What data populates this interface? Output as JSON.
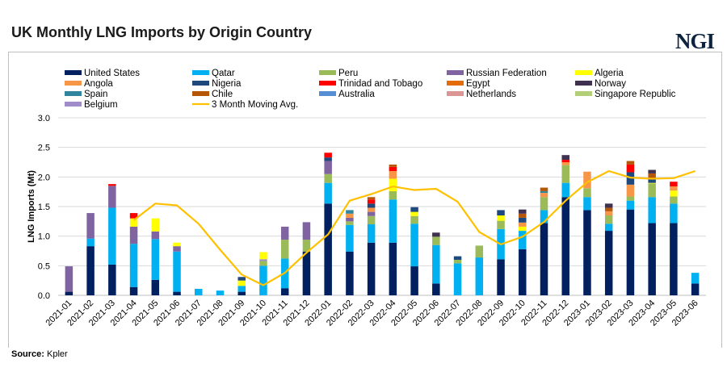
{
  "header": {
    "title": "UK Monthly LNG Imports by Origin Country",
    "logo": "NGI"
  },
  "footer": {
    "source_label": "Source:",
    "source_value": "Kpler"
  },
  "chart_data": {
    "type": "bar",
    "stacked": true,
    "title": "UK Monthly LNG Imports by Origin Country",
    "ylabel": "LNG Imports (Mt)",
    "xlabel": "",
    "ylim": [
      0,
      3.0
    ],
    "yticks": [
      "0.0",
      "0.5",
      "1.0",
      "1.5",
      "2.0",
      "2.5",
      "3.0"
    ],
    "grid": true,
    "legend_position": "top",
    "categories": [
      "2021-01",
      "2021-02",
      "2021-03",
      "2021-04",
      "2021-05",
      "2021-06",
      "2021-07",
      "2021-08",
      "2021-09",
      "2021-10",
      "2021-11",
      "2021-12",
      "2022-01",
      "2022-02",
      "2022-03",
      "2022-04",
      "2022-05",
      "2022-06",
      "2022-07",
      "2022-08",
      "2022-09",
      "2022-10",
      "2022-11",
      "2022-12",
      "2023-01",
      "2023-02",
      "2023-03",
      "2023-04",
      "2023-05",
      "2023-06"
    ],
    "series": [
      {
        "name": "United States",
        "color": "#002060",
        "values": [
          0.06,
          0.83,
          0.52,
          0.14,
          0.26,
          0.06,
          0,
          0,
          0.06,
          0,
          0.12,
          0.74,
          1.55,
          0.74,
          0.89,
          0.89,
          0.49,
          0.2,
          0,
          0,
          0.61,
          0.78,
          1.22,
          1.66,
          1.44,
          1.09,
          1.45,
          1.22,
          1.22,
          0.2
        ]
      },
      {
        "name": "Qatar",
        "color": "#00B0F0",
        "values": [
          0,
          0.13,
          0.96,
          0.73,
          0.69,
          0.68,
          0.11,
          0.08,
          0.1,
          0.5,
          0.5,
          0,
          0.35,
          0.45,
          0.31,
          0.73,
          0.72,
          0.65,
          0.54,
          0.64,
          0.51,
          0.31,
          0.22,
          0.24,
          0.22,
          0.12,
          0.15,
          0.44,
          0.33,
          0.18
        ]
      },
      {
        "name": "Peru",
        "color": "#9BBB59",
        "values": [
          0,
          0,
          0,
          0,
          0,
          0,
          0,
          0,
          0,
          0.08,
          0.32,
          0.2,
          0.15,
          0.06,
          0.14,
          0.14,
          0.13,
          0.14,
          0.06,
          0.2,
          0.14,
          0,
          0.22,
          0.3,
          0.15,
          0.14,
          0.07,
          0.23,
          0.12,
          0
        ]
      },
      {
        "name": "Russian Federation",
        "color": "#8064A2",
        "values": [
          0.43,
          0.43,
          0.37,
          0.29,
          0.13,
          0.09,
          0,
          0,
          0,
          0,
          0.22,
          0.29,
          0.22,
          0.06,
          0.07,
          0,
          0,
          0,
          0,
          0,
          0,
          0,
          0,
          0,
          0,
          0,
          0,
          0,
          0,
          0
        ]
      },
      {
        "name": "Belgium",
        "color": "#9F8CC8",
        "values": [
          0,
          0,
          0,
          0,
          0,
          0,
          0,
          0,
          0,
          0.03,
          0,
          0.01,
          0,
          0,
          0,
          0,
          0,
          0,
          0,
          0,
          0,
          0,
          0,
          0,
          0,
          0,
          0,
          0,
          0,
          0
        ]
      },
      {
        "name": "Algeria",
        "color": "#FFFF00",
        "values": [
          0,
          0,
          0,
          0.14,
          0.22,
          0.06,
          0,
          0,
          0.09,
          0.12,
          0,
          0,
          0,
          0,
          0,
          0.21,
          0.07,
          0,
          0,
          0,
          0.09,
          0.07,
          0,
          0,
          0,
          0,
          0,
          0.01,
          0.1,
          0
        ]
      },
      {
        "name": "Angola",
        "color": "#F79646",
        "values": [
          0,
          0,
          0,
          0,
          0,
          0,
          0,
          0,
          0,
          0,
          0,
          0,
          0,
          0.07,
          0.07,
          0.13,
          0,
          0,
          0,
          0,
          0,
          0.07,
          0.07,
          0.05,
          0.28,
          0.07,
          0.2,
          0,
          0.07,
          0
        ]
      },
      {
        "name": "Spain",
        "color": "#31859C",
        "values": [
          0,
          0,
          0,
          0,
          0,
          0,
          0,
          0,
          0,
          0,
          0,
          0,
          0,
          0.06,
          0,
          0,
          0,
          0,
          0,
          0,
          0,
          0,
          0.03,
          0,
          0,
          0,
          0,
          0,
          0,
          0
        ]
      },
      {
        "name": "Nigeria",
        "color": "#1F497D",
        "values": [
          0,
          0,
          0,
          0,
          0,
          0,
          0,
          0,
          0.06,
          0,
          0,
          0,
          0.06,
          0,
          0.07,
          0,
          0.08,
          0,
          0.06,
          0,
          0.09,
          0.08,
          0,
          0,
          0,
          0,
          0.21,
          0.07,
          0,
          0
        ]
      },
      {
        "name": "Trinidad and Tobago",
        "color": "#FF0000",
        "values": [
          0,
          0,
          0.03,
          0.09,
          0,
          0,
          0,
          0,
          0,
          0,
          0,
          0,
          0.08,
          0,
          0.07,
          0.07,
          0,
          0,
          0,
          0,
          0,
          0,
          0,
          0.04,
          0,
          0,
          0.13,
          0,
          0.08,
          0
        ]
      },
      {
        "name": "Egypt",
        "color": "#E36C09",
        "values": [
          0,
          0,
          0,
          0,
          0,
          0,
          0,
          0,
          0,
          0,
          0,
          0,
          0,
          0,
          0,
          0,
          0,
          0,
          0,
          0,
          0,
          0,
          0,
          0,
          0,
          0,
          0,
          0,
          0,
          0
        ]
      },
      {
        "name": "Chile",
        "color": "#B65708",
        "values": [
          0,
          0,
          0,
          0,
          0,
          0,
          0,
          0,
          0,
          0,
          0,
          0,
          0,
          0,
          0.04,
          0.04,
          0,
          0,
          0,
          0,
          0,
          0.07,
          0.06,
          0,
          0,
          0.06,
          0.06,
          0.09,
          0,
          0
        ]
      },
      {
        "name": "Norway",
        "color": "#403151",
        "values": [
          0,
          0,
          0,
          0,
          0,
          0,
          0,
          0,
          0,
          0,
          0,
          0,
          0,
          0,
          0,
          0,
          0,
          0.07,
          0,
          0,
          0,
          0.07,
          0,
          0.08,
          0,
          0.07,
          0,
          0.06,
          0,
          0
        ]
      },
      {
        "name": "Australia",
        "color": "#558ED5",
        "values": [
          0,
          0,
          0,
          0,
          0,
          0,
          0,
          0,
          0,
          0,
          0,
          0,
          0,
          0,
          0,
          0,
          0,
          0,
          0,
          0,
          0,
          0,
          0,
          0,
          0,
          0,
          0,
          0,
          0,
          0
        ]
      },
      {
        "name": "Netherlands",
        "color": "#D99694",
        "values": [
          0,
          0,
          0,
          0,
          0,
          0,
          0,
          0,
          0,
          0,
          0,
          0,
          0,
          0,
          0,
          0,
          0,
          0,
          0,
          0,
          0,
          0,
          0,
          0,
          0,
          0,
          0,
          0,
          0,
          0
        ]
      },
      {
        "name": "Singapore Republic",
        "color": "#B3CF7A",
        "values": [
          0,
          0,
          0,
          0,
          0,
          0,
          0,
          0,
          0,
          0,
          0,
          0,
          0,
          0,
          0,
          0,
          0,
          0,
          0,
          0,
          0,
          0,
          0,
          0,
          0,
          0,
          0,
          0,
          0,
          0
        ]
      }
    ],
    "line_series": {
      "name": "3 Month Moving Avg.",
      "color": "#FFC000",
      "values": [
        null,
        null,
        null,
        1.27,
        1.55,
        1.52,
        1.21,
        0.77,
        0.35,
        0.17,
        0.38,
        0.72,
        1.03,
        1.6,
        1.71,
        1.84,
        1.78,
        1.8,
        1.58,
        1.07,
        0.86,
        0.99,
        1.24,
        1.6,
        1.91,
        2.1,
        1.99,
        1.97,
        1.98,
        2.1
      ]
    },
    "legend_order": [
      "United States",
      "Qatar",
      "Peru",
      "Russian Federation",
      "Algeria",
      "Angola",
      "Nigeria",
      "Trinidad and Tobago",
      "Egypt",
      "Norway",
      "Spain",
      "Chile",
      "Australia",
      "Netherlands",
      "Singapore Republic",
      "Belgium",
      "3 Month Moving Avg."
    ]
  }
}
